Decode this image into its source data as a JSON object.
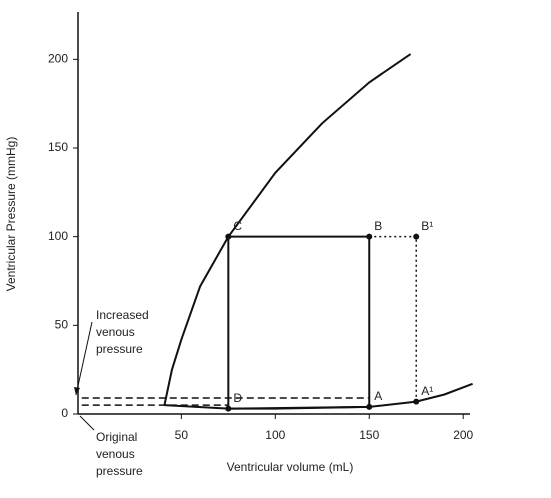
{
  "chart_data": {
    "type": "line",
    "xlabel": "Ventricular volume (mL)",
    "ylabel": "Ventricular Pressure (mmHg)",
    "xlim": [
      -5,
      210
    ],
    "ylim": [
      0,
      225
    ],
    "xticks": [
      50,
      100,
      150,
      200
    ],
    "yticks": [
      0,
      50,
      100,
      150,
      200
    ],
    "color": "#111111",
    "series": [
      {
        "x": [
          41,
          45,
          50,
          60,
          75,
          100,
          125,
          150,
          172
        ],
        "values": [
          5,
          25,
          42,
          72,
          100,
          136,
          164,
          187,
          203
        ],
        "style": "solid"
      },
      {
        "x": [
          41,
          75,
          100,
          150,
          175,
          190,
          205
        ],
        "values": [
          5,
          3,
          3,
          4,
          7,
          11,
          17
        ],
        "style": "solid"
      },
      {
        "x": [
          75,
          75,
          150,
          150,
          75
        ],
        "values": [
          3,
          100,
          100,
          4,
          3
        ],
        "style": "solid"
      },
      {
        "x": [
          150,
          175,
          175
        ],
        "values": [
          100,
          100,
          7
        ],
        "style": "dotted"
      },
      {
        "x": [
          -3,
          150
        ],
        "values": [
          9,
          9
        ],
        "style": "dashed"
      },
      {
        "x": [
          -3,
          75
        ],
        "values": [
          5,
          5
        ],
        "style": "dashed"
      }
    ],
    "points": [
      {
        "label": "A",
        "x": 150,
        "y": 4
      },
      {
        "label": "B",
        "x": 150,
        "y": 100
      },
      {
        "label": "C",
        "x": 75,
        "y": 100
      },
      {
        "label": "D",
        "x": 75,
        "y": 3
      },
      {
        "label": "B¹",
        "x": 175,
        "y": 100
      },
      {
        "label": "A¹",
        "x": 175,
        "y": 7
      }
    ],
    "annotations": [
      {
        "lines": [
          "Increased",
          "venous",
          "pressure"
        ]
      },
      {
        "lines": [
          "Original",
          "venous",
          "pressure"
        ]
      }
    ]
  }
}
